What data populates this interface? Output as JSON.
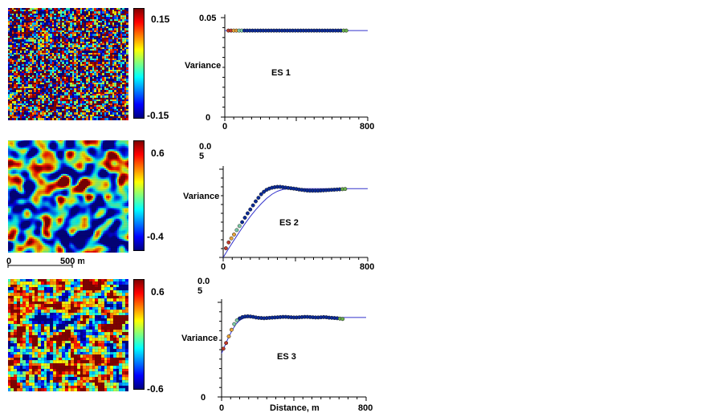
{
  "colors": {
    "model_line": "#3333cc",
    "axis": "#000000",
    "point": "#0a2a9a",
    "point_stroke": "#1a1a1a"
  },
  "scale_bar": {
    "label_start": "0",
    "label_end": "500 m"
  },
  "chart_data": [
    {
      "type": "scatter",
      "title": "ES 1",
      "ylabel": "Variance",
      "xlabel": "",
      "xlim": [
        0,
        800
      ],
      "ylim": [
        0,
        0.05
      ],
      "x_ticks_labeled": [
        "0",
        "800"
      ],
      "y_ticks_labeled": [
        "0",
        "0.05"
      ],
      "colorbar": {
        "top_label": "0.15",
        "bottom_label": "-0.15",
        "min": -0.15,
        "max": 0.15
      },
      "series": [
        {
          "kind": "points",
          "x": [
            20,
            35,
            50,
            65,
            80,
            95,
            110,
            125,
            140,
            155,
            170,
            185,
            200,
            215,
            230,
            245,
            260,
            275,
            290,
            305,
            320,
            335,
            350,
            365,
            380,
            395,
            410,
            425,
            440,
            455,
            470,
            485,
            500,
            515,
            530,
            545,
            560,
            575,
            590,
            605,
            620,
            635,
            650,
            665,
            680
          ],
          "y": [
            0.0435,
            0.0435,
            0.0435,
            0.0435,
            0.0435,
            0.0435,
            0.0435,
            0.0435,
            0.0435,
            0.0435,
            0.0435,
            0.0435,
            0.0435,
            0.0435,
            0.0435,
            0.0435,
            0.0435,
            0.0435,
            0.0435,
            0.0435,
            0.0435,
            0.0435,
            0.0435,
            0.0435,
            0.0435,
            0.0435,
            0.0435,
            0.0435,
            0.0435,
            0.0435,
            0.0435,
            0.0435,
            0.0435,
            0.0435,
            0.0435,
            0.0435,
            0.0435,
            0.0435,
            0.0435,
            0.0435,
            0.0435,
            0.0435,
            0.0435,
            0.0435,
            0.0435
          ]
        },
        {
          "kind": "model",
          "x": [
            0,
            800
          ],
          "y": [
            0.0435,
            0.0435
          ]
        }
      ]
    },
    {
      "type": "scatter",
      "title": "ES 2",
      "ylabel": "Variance",
      "xlabel": "",
      "xlim": [
        0,
        800
      ],
      "ylim": [
        0,
        0.05
      ],
      "x_ticks_labeled": [
        "0",
        "800"
      ],
      "y_ticks_labeled": [
        "0.0",
        "5"
      ],
      "colorbar": {
        "top_label": "0.6",
        "bottom_label": "-0.4",
        "min": -0.4,
        "max": 0.6
      },
      "series": [
        {
          "kind": "points",
          "x": [
            15,
            30,
            45,
            60,
            75,
            90,
            105,
            120,
            135,
            150,
            165,
            180,
            195,
            210,
            225,
            240,
            255,
            270,
            285,
            300,
            315,
            330,
            345,
            360,
            375,
            390,
            405,
            420,
            435,
            450,
            465,
            480,
            495,
            510,
            525,
            540,
            555,
            570,
            585,
            600,
            615,
            630,
            645,
            660,
            675
          ],
          "y": [
            0.0052,
            0.0085,
            0.0108,
            0.013,
            0.0155,
            0.0178,
            0.02,
            0.0225,
            0.025,
            0.0272,
            0.0295,
            0.0318,
            0.0338,
            0.0358,
            0.0372,
            0.0383,
            0.039,
            0.0395,
            0.0398,
            0.04,
            0.04,
            0.0398,
            0.0396,
            0.0394,
            0.0392,
            0.039,
            0.0388,
            0.0385,
            0.0383,
            0.0381,
            0.0379,
            0.0378,
            0.0378,
            0.0378,
            0.0378,
            0.0379,
            0.038,
            0.0381,
            0.0382,
            0.0383,
            0.0384,
            0.0385,
            0.0386,
            0.0387,
            0.0388
          ]
        },
        {
          "kind": "model",
          "x": [
            0,
            30,
            60,
            90,
            120,
            150,
            180,
            210,
            240,
            270,
            300,
            330,
            360,
            390,
            420,
            450,
            480,
            510,
            540,
            570,
            600,
            630,
            660,
            690,
            720,
            750,
            780,
            800
          ],
          "y": [
            0,
            0.005,
            0.0098,
            0.0145,
            0.019,
            0.0232,
            0.027,
            0.0304,
            0.0334,
            0.0358,
            0.0375,
            0.0385,
            0.0389,
            0.039,
            0.039,
            0.039,
            0.039,
            0.039,
            0.039,
            0.039,
            0.039,
            0.039,
            0.039,
            0.039,
            0.039,
            0.039,
            0.039,
            0.039
          ]
        }
      ]
    },
    {
      "type": "scatter",
      "title": "ES 3",
      "ylabel": "Variance",
      "xlabel": "Distance, m",
      "xlim": [
        0,
        800
      ],
      "ylim": [
        0,
        0.05
      ],
      "x_ticks_labeled": [
        "0",
        "800"
      ],
      "y_ticks_labeled": [
        "0",
        "0.0",
        "5"
      ],
      "colorbar": {
        "top_label": "0.6",
        "bottom_label": "-0.6",
        "min": -0.6,
        "max": 0.6
      },
      "series": [
        {
          "kind": "points",
          "x": [
            10,
            25,
            40,
            55,
            70,
            85,
            100,
            115,
            130,
            145,
            160,
            175,
            190,
            205,
            220,
            235,
            250,
            265,
            280,
            295,
            310,
            325,
            340,
            355,
            370,
            385,
            400,
            415,
            430,
            445,
            460,
            475,
            490,
            505,
            520,
            535,
            550,
            565,
            580,
            595,
            610,
            625,
            640,
            655,
            670
          ],
          "y": [
            0.0255,
            0.0285,
            0.032,
            0.0355,
            0.0385,
            0.0405,
            0.0415,
            0.0422,
            0.0425,
            0.0426,
            0.0425,
            0.0423,
            0.042,
            0.0418,
            0.0417,
            0.0416,
            0.0417,
            0.0418,
            0.0419,
            0.042,
            0.0421,
            0.0422,
            0.0423,
            0.0423,
            0.0422,
            0.0421,
            0.042,
            0.042,
            0.0421,
            0.0422,
            0.0423,
            0.0423,
            0.0422,
            0.0421,
            0.042,
            0.042,
            0.0421,
            0.0422,
            0.0421,
            0.0419,
            0.0418,
            0.0417,
            0.0416,
            0.0414,
            0.0412
          ]
        },
        {
          "kind": "model",
          "x": [
            0,
            20,
            40,
            60,
            80,
            100,
            120,
            140,
            160,
            180,
            200,
            250,
            300,
            400,
            500,
            600,
            700,
            800
          ],
          "y": [
            0.023,
            0.0275,
            0.0318,
            0.0355,
            0.0385,
            0.0405,
            0.0415,
            0.0419,
            0.042,
            0.042,
            0.042,
            0.042,
            0.042,
            0.042,
            0.042,
            0.042,
            0.042,
            0.042
          ]
        }
      ]
    }
  ]
}
